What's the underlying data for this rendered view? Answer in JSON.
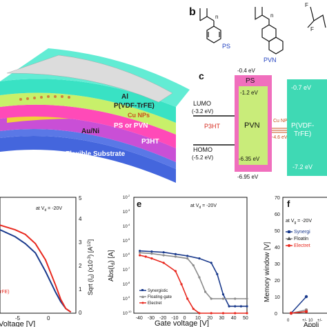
{
  "panels": {
    "b": {
      "letter": "b",
      "chain_subscript": "n",
      "labels": [
        "PS",
        "PVN"
      ],
      "label_color": "#1f3fbf"
    },
    "c": {
      "letter": "c",
      "ps_top": "-0.4 eV",
      "ps_label": "PS",
      "pvn_label": "PVN",
      "pvn_lumo": "-1.2 eV",
      "pvn_homo": "-6.35 eV",
      "ps_bottom": "-6.95 eV",
      "lumo_label": "LUMO",
      "lumo_value": "(-3.2 eV)",
      "homo_label": "HOMO",
      "homo_value": "(-5.2 eV)",
      "p3ht": "P3HT",
      "cu_label": "Cu NPs",
      "cu_value": "-4.6 eV",
      "pvdf_top": "-0.7 eV",
      "pvdf_label_1": "P(VDF-",
      "pvdf_label_2": "TrFE)",
      "pvdf_bottom": "-7.2 eV"
    },
    "a": {
      "layers": [
        "Al",
        "P(VDF-TrFE)",
        "Cu NPs",
        "PS or PVN",
        "Au/Ni",
        "P3HT",
        "Flexible Substrate"
      ]
    },
    "d": {
      "note_prefix": "at V",
      "note_sub": "d",
      "note_suffix": " = -20V",
      "xlabel": "Voltage [V]",
      "ylabel": "Sqrt (I",
      "ylabel_sub": "d",
      "ylabel_mid": ") (x10",
      "ylabel_sup": "-3",
      "ylabel_end": ") [A",
      "ylabel_sup2": "1/2",
      "ylabel_close": "]",
      "legend_fragment": "rFE)",
      "x_ticks": [
        "-5",
        "0"
      ],
      "y_ticks": [
        "0",
        "1",
        "2",
        "3",
        "4",
        "5"
      ]
    },
    "e": {
      "letter": "e",
      "note": "at V",
      "note_sub": "d",
      "note_suffix": " = -20V",
      "xlabel": "Gate voltage [V]",
      "ylabel": "Abs(I",
      "ylabel_sub": "d",
      "ylabel_end": ") [A]",
      "x_ticks": [
        "-40",
        "-30",
        "-20",
        "-10",
        "0",
        "10",
        "20",
        "30",
        "40",
        "50"
      ],
      "y_ticks": [
        "10",
        "10",
        "10",
        "10",
        "10",
        "10",
        "10",
        "10",
        "10"
      ],
      "y_exps": [
        "-2",
        "-3",
        "-4",
        "-5",
        "-6",
        "-7",
        "-8",
        "-9",
        "-10"
      ],
      "legend": [
        "Synergistic",
        "Floating-gate",
        "Electret"
      ]
    },
    "f": {
      "letter": "f",
      "note": "at V",
      "note_sub": "g",
      "note_suffix": " = -20V",
      "ylabel": "Memory window [V]",
      "xlabel": "Appli",
      "y_ticks": [
        "0",
        "10",
        "20",
        "30",
        "40",
        "50",
        "60",
        "70"
      ],
      "x_ticks": [
        "0",
        "+/- 10",
        "+/-"
      ],
      "legend": [
        "Synergi",
        "Floatin",
        "Electret"
      ]
    }
  },
  "colors": {
    "synergistic": "#1a3a8c",
    "floating": "#8a8a8a",
    "electret": "#e8281e",
    "pvn_box": "#c9ec7a",
    "ps_box": "#f06fbd",
    "pvdf_box": "#3fd9b4",
    "energy_text_red": "#d62a1e",
    "cu_color": "#c8501e"
  },
  "chart_data": [
    {
      "type": "line",
      "panel": "e",
      "xlabel": "Gate voltage [V]",
      "ylabel": "Abs(Id) [A]",
      "xlim": [
        -45,
        50
      ],
      "ylim_log10": [
        -10,
        -2
      ],
      "series": [
        {
          "name": "Synergistic",
          "x": [
            -40,
            -30,
            -20,
            -10,
            0,
            10,
            20,
            25,
            30,
            35,
            40,
            45,
            50
          ],
          "y": [
            2e-06,
            1.8e-06,
            1.6e-06,
            1.2e-06,
            9e-07,
            6e-07,
            3e-07,
            5e-08,
            2e-09,
            3e-10,
            3e-10,
            3e-10,
            3e-10
          ]
        },
        {
          "name": "Floating-gate",
          "x": [
            -40,
            -30,
            -20,
            -10,
            0,
            5,
            10,
            15,
            20,
            30,
            40,
            50
          ],
          "y": [
            1.5e-06,
            1.3e-06,
            1e-06,
            8e-07,
            6e-07,
            2e-07,
            3e-08,
            3e-09,
            1e-09,
            1e-09,
            1e-09,
            1e-09
          ]
        },
        {
          "name": "Electret",
          "x": [
            -40,
            -35,
            -30,
            -20,
            -10,
            -5,
            0,
            5,
            10,
            20,
            30,
            40,
            50
          ],
          "y": [
            1e-06,
            8e-07,
            6e-07,
            3e-07,
            8e-08,
            1e-08,
            1e-09,
            2e-10,
            1e-10,
            1e-10,
            1e-10,
            1e-10,
            1e-10
          ]
        }
      ]
    },
    {
      "type": "line",
      "panel": "f",
      "ylabel": "Memory window [V]",
      "ylim": [
        0,
        70
      ],
      "categories": [
        "0",
        "+/- 10"
      ],
      "series": [
        {
          "name": "Synergi",
          "values": [
            0,
            10
          ]
        },
        {
          "name": "Floatin",
          "values": [
            0,
            2
          ]
        },
        {
          "name": "Electret",
          "values": [
            0,
            1
          ]
        }
      ]
    },
    {
      "type": "line",
      "panel": "d",
      "xlabel": "Voltage [V]",
      "xlim": [
        -12,
        3
      ],
      "ylim": [
        0,
        5
      ],
      "series": [
        {
          "name": "blue",
          "x": [
            -12,
            -9,
            -7,
            -5,
            -3,
            -1,
            0,
            1,
            2
          ],
          "y": [
            3.6,
            3.3,
            3.0,
            2.6,
            1.8,
            0.9,
            0.5,
            0.2,
            0.05
          ]
        },
        {
          "name": "red",
          "x": [
            -12,
            -9,
            -7,
            -5,
            -3,
            -1,
            0,
            1,
            2
          ],
          "y": [
            3.8,
            3.6,
            3.4,
            3.0,
            2.3,
            1.2,
            0.6,
            0.2,
            0.05
          ]
        }
      ]
    }
  ]
}
